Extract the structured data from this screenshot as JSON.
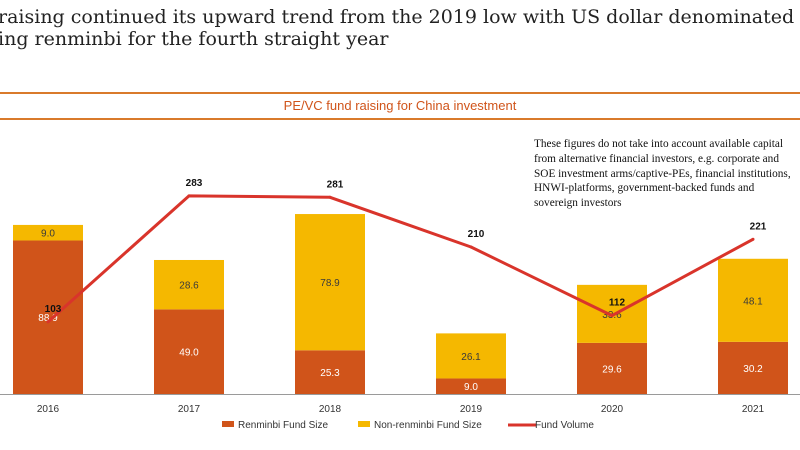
{
  "headline": {
    "line1": "raising continued its upward trend from the 2019 low with US dollar denominated fund",
    "line2": "ing renminbi for the fourth straight year"
  },
  "chart_data": {
    "type": "bar",
    "stacked": true,
    "title": "PE/VC fund raising for China investment",
    "categories": [
      "2016",
      "2017",
      "2018",
      "2019",
      "2020",
      "2021"
    ],
    "series": [
      {
        "name": "Renminbi Fund Size",
        "values": [
          88.9,
          49.0,
          25.3,
          9.0,
          29.6,
          30.2
        ],
        "labels": [
          "88.9",
          "49.0",
          "25.3",
          "9.0",
          "29.6",
          "30.2"
        ],
        "color": "#d0541a"
      },
      {
        "name": "Non-renminbi Fund Size",
        "values": [
          9.0,
          28.6,
          78.9,
          26.1,
          33.6,
          48.1
        ],
        "labels": [
          "9.0",
          "28.6",
          "78.9",
          "26.1",
          "33.6",
          "48.1"
        ],
        "color": "#f5b800"
      },
      {
        "name": "Fund Volume",
        "type": "line",
        "values": [
          103,
          283,
          281,
          210,
          112,
          221
        ],
        "labels": [
          "103",
          "283",
          "281",
          "210",
          "112",
          "221"
        ],
        "color": "#d9342b"
      }
    ],
    "annotation": "These figures do not take into account available capital from alternative financial investors, e.g. corporate and SOE investment arms/captive-PEs, financial institutions, HNWI-platforms, government-backed funds and sovereign investors",
    "legend_position": "bottom",
    "grid": false
  }
}
